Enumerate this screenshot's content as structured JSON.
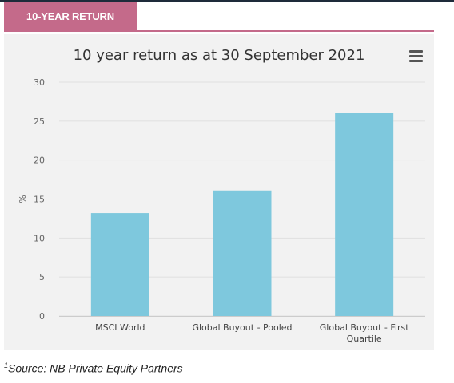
{
  "tab": {
    "label": "10-YEAR RETURN"
  },
  "colors": {
    "accent": "#c46a8a",
    "bar": "#7ec8dd",
    "panel": "#f2f2f2"
  },
  "menu": {
    "icon": "hamburger-menu-icon"
  },
  "footnote": {
    "marker": "1",
    "text": "Source: NB Private Equity Partners"
  },
  "chart_data": {
    "type": "bar",
    "title": "10 year return as at 30 September 2021",
    "ylabel": "%",
    "xlabel": "",
    "ylim": [
      0,
      30
    ],
    "yticks": [
      0,
      5,
      10,
      15,
      20,
      25,
      30
    ],
    "grid": true,
    "categories": [
      [
        "MSCI World"
      ],
      [
        "Global Buyout - Pooled"
      ],
      [
        "Global Buyout - First",
        "Quartile"
      ]
    ],
    "values": [
      13.2,
      16.1,
      26.1
    ]
  }
}
